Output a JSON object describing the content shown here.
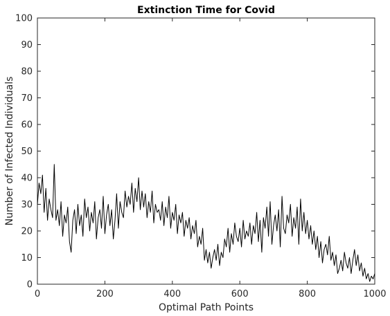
{
  "chart_data": {
    "type": "line",
    "title": "Extinction Time for Covid",
    "xlabel": "Optimal Path Points",
    "ylabel": "Number of Infected Individuals",
    "xlim": [
      0,
      1000
    ],
    "ylim": [
      0,
      100
    ],
    "xticks": [
      0,
      200,
      400,
      600,
      800,
      1000
    ],
    "yticks": [
      0,
      10,
      20,
      30,
      40,
      50,
      60,
      70,
      80,
      90,
      100
    ],
    "xtick_labels": [
      "0",
      "200",
      "400",
      "600",
      "800",
      "1000"
    ],
    "ytick_labels": [
      "0",
      "10",
      "20",
      "30",
      "40",
      "50",
      "60",
      "70",
      "80",
      "90",
      "100"
    ],
    "grid": false,
    "series": [
      {
        "color": "#000000",
        "x": [
          0,
          5,
          10,
          15,
          20,
          25,
          30,
          35,
          40,
          45,
          50,
          55,
          60,
          65,
          70,
          75,
          80,
          85,
          90,
          95,
          100,
          105,
          110,
          115,
          120,
          125,
          130,
          135,
          140,
          145,
          150,
          155,
          160,
          165,
          170,
          175,
          180,
          185,
          190,
          195,
          200,
          205,
          210,
          215,
          220,
          225,
          230,
          235,
          240,
          245,
          250,
          255,
          260,
          265,
          270,
          275,
          280,
          285,
          290,
          295,
          300,
          305,
          310,
          315,
          320,
          325,
          330,
          335,
          340,
          345,
          350,
          355,
          360,
          365,
          370,
          375,
          380,
          385,
          390,
          395,
          400,
          405,
          410,
          415,
          420,
          425,
          430,
          435,
          440,
          445,
          450,
          455,
          460,
          465,
          470,
          475,
          480,
          485,
          490,
          495,
          500,
          505,
          510,
          515,
          520,
          525,
          530,
          535,
          540,
          545,
          550,
          555,
          560,
          565,
          570,
          575,
          580,
          585,
          590,
          595,
          600,
          605,
          610,
          615,
          620,
          625,
          630,
          635,
          640,
          645,
          650,
          655,
          660,
          665,
          670,
          675,
          680,
          685,
          690,
          695,
          700,
          705,
          710,
          715,
          720,
          725,
          730,
          735,
          740,
          745,
          750,
          755,
          760,
          765,
          770,
          775,
          780,
          785,
          790,
          795,
          800,
          805,
          810,
          815,
          820,
          825,
          830,
          835,
          840,
          845,
          850,
          855,
          860,
          865,
          870,
          875,
          880,
          885,
          890,
          895,
          900,
          905,
          910,
          915,
          920,
          925,
          930,
          935,
          940,
          945,
          950,
          955,
          960,
          965,
          970,
          975,
          980,
          985,
          990,
          995,
          1000
        ],
        "y": [
          30,
          38,
          34,
          41,
          27,
          36,
          24,
          32,
          28,
          25,
          45,
          24,
          28,
          22,
          31,
          18,
          26,
          23,
          29,
          16,
          12,
          24,
          28,
          19,
          30,
          22,
          26,
          18,
          32,
          25,
          29,
          20,
          27,
          23,
          31,
          17,
          25,
          28,
          21,
          33,
          19,
          26,
          30,
          22,
          28,
          17,
          24,
          34,
          21,
          31,
          27,
          25,
          35,
          29,
          33,
          30,
          38,
          27,
          36,
          31,
          40,
          28,
          35,
          29,
          34,
          25,
          31,
          27,
          35,
          23,
          30,
          27,
          28,
          24,
          31,
          22,
          29,
          25,
          33,
          21,
          27,
          24,
          30,
          19,
          26,
          23,
          27,
          18,
          24,
          21,
          25,
          17,
          22,
          19,
          24,
          14,
          18,
          15,
          21,
          9,
          13,
          8,
          12,
          6,
          10,
          13,
          9,
          15,
          7,
          12,
          10,
          17,
          14,
          21,
          12,
          19,
          15,
          23,
          18,
          16,
          21,
          14,
          24,
          17,
          20,
          18,
          23,
          15,
          22,
          19,
          27,
          16,
          24,
          12,
          25,
          21,
          29,
          18,
          31,
          15,
          22,
          26,
          20,
          28,
          14,
          33,
          21,
          19,
          26,
          23,
          30,
          18,
          25,
          21,
          29,
          15,
          32,
          20,
          27,
          19,
          24,
          17,
          22,
          15,
          20,
          13,
          18,
          10,
          16,
          8,
          13,
          15,
          11,
          18,
          9,
          12,
          7,
          11,
          4,
          6,
          9,
          5,
          12,
          8,
          6,
          10,
          4,
          9,
          13,
          7,
          11,
          5,
          8,
          3,
          6,
          2,
          4,
          1,
          3,
          2,
          4
        ]
      }
    ]
  }
}
